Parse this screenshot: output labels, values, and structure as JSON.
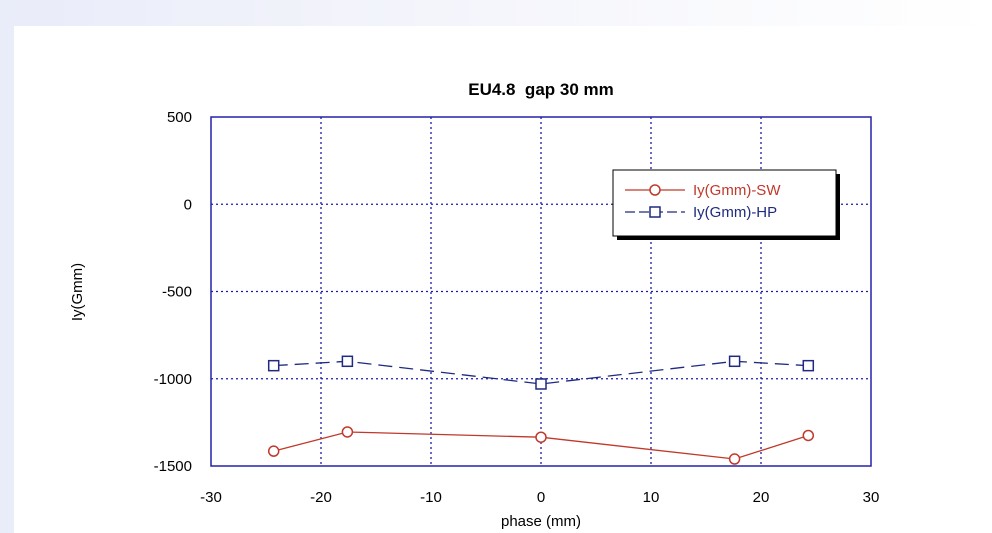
{
  "chart_data": {
    "type": "line",
    "title": "EU4.8  gap 30 mm",
    "xlabel": "phase (mm)",
    "ylabel": "Iy(Gmm)",
    "xlim": [
      -30,
      30
    ],
    "ylim": [
      -1500,
      500
    ],
    "xticks": [
      -30,
      -20,
      -10,
      0,
      10,
      20,
      30
    ],
    "yticks": [
      -1500,
      -1000,
      -500,
      0,
      500
    ],
    "grid": true,
    "legend_position": "top-right",
    "series": [
      {
        "name": "Iy(Gmm)-SW",
        "color": "#c0392b",
        "marker": "circle",
        "line_style": "solid",
        "x": [
          -24.3,
          -17.6,
          0,
          17.6,
          24.3
        ],
        "y": [
          -1415,
          -1305,
          -1335,
          -1460,
          -1325
        ]
      },
      {
        "name": "Iy(Gmm)-HP",
        "color": "#1f2a80",
        "marker": "square",
        "line_style": "dashed",
        "x": [
          -24.3,
          -17.6,
          0,
          17.6,
          24.3
        ],
        "y": [
          -925,
          -900,
          -1030,
          -900,
          -925
        ]
      }
    ],
    "colors": {
      "frame": "#2222aa",
      "grid": "#1a1ab0"
    }
  }
}
